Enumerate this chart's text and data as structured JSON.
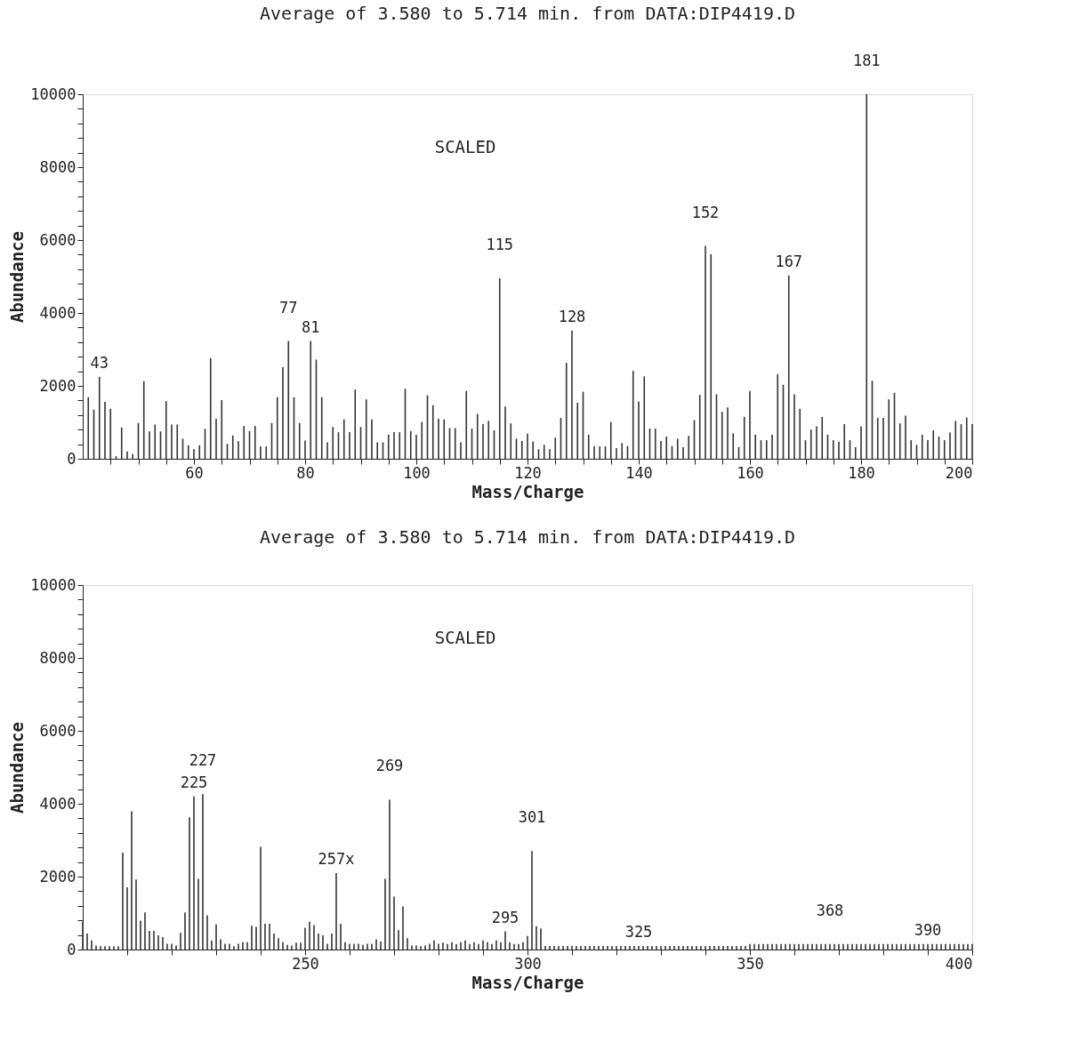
{
  "chart_data": [
    {
      "type": "bar",
      "title": "Average of 3.580 to 5.714 min. from DATA:DIP4419.D",
      "xlabel": "Mass/Charge",
      "ylabel": "Abundance",
      "color": "#333333",
      "xlim": [
        40,
        200
      ],
      "ylim": [
        0,
        10000
      ],
      "xticks": [
        {
          "value": 45,
          "label": null
        },
        {
          "value": 50,
          "label": null
        },
        {
          "value": 55,
          "label": null
        },
        60,
        {
          "value": 65,
          "label": null
        },
        {
          "value": 70,
          "label": null
        },
        {
          "value": 75,
          "label": null
        },
        80,
        {
          "value": 85,
          "label": null
        },
        {
          "value": 90,
          "label": null
        },
        {
          "value": 95,
          "label": null
        },
        100,
        {
          "value": 105,
          "label": null
        },
        {
          "value": 110,
          "label": null
        },
        {
          "value": 115,
          "label": null
        },
        120,
        {
          "value": 125,
          "label": null
        },
        {
          "value": 130,
          "label": null
        },
        {
          "value": 135,
          "label": null
        },
        140,
        {
          "value": 145,
          "label": null
        },
        {
          "value": 150,
          "label": null
        },
        {
          "value": 155,
          "label": null
        },
        160,
        {
          "value": 165,
          "label": null
        },
        {
          "value": 170,
          "label": null
        },
        {
          "value": 175,
          "label": null
        },
        180,
        {
          "value": 185,
          "label": null
        },
        {
          "value": 190,
          "label": null
        },
        {
          "value": 195,
          "label": null
        },
        200
      ],
      "yticks": [
        0,
        {
          "value": 400,
          "label": null
        },
        {
          "value": 800,
          "label": null
        },
        {
          "value": 1200,
          "label": null
        },
        {
          "value": 1600,
          "label": null
        },
        2000,
        {
          "value": 2400,
          "label": null
        },
        {
          "value": 2800,
          "label": null
        },
        {
          "value": 3200,
          "label": null
        },
        {
          "value": 3600,
          "label": null
        },
        4000,
        {
          "value": 4400,
          "label": null
        },
        {
          "value": 4800,
          "label": null
        },
        {
          "value": 5200,
          "label": null
        },
        {
          "value": 5600,
          "label": null
        },
        6000,
        {
          "value": 6400,
          "label": null
        },
        {
          "value": 6800,
          "label": null
        },
        {
          "value": 7200,
          "label": null
        },
        {
          "value": 7600,
          "label": null
        },
        8000,
        {
          "value": 8400,
          "label": null
        },
        {
          "value": 8800,
          "label": null
        },
        {
          "value": 9200,
          "label": null
        },
        {
          "value": 9600,
          "label": null
        },
        10000
      ],
      "x": [
        41,
        42,
        43,
        44,
        45,
        46,
        47,
        48,
        49,
        50,
        51,
        52,
        53,
        54,
        55,
        56,
        57,
        58,
        59,
        60,
        61,
        62,
        63,
        64,
        65,
        66,
        67,
        68,
        69,
        70,
        71,
        72,
        73,
        74,
        75,
        76,
        77,
        78,
        79,
        80,
        81,
        82,
        83,
        84,
        85,
        86,
        87,
        88,
        89,
        90,
        91,
        92,
        93,
        94,
        95,
        96,
        97,
        98,
        99,
        100,
        101,
        102,
        103,
        104,
        105,
        106,
        107,
        108,
        109,
        110,
        111,
        112,
        113,
        114,
        115,
        116,
        117,
        118,
        119,
        120,
        121,
        122,
        123,
        124,
        125,
        126,
        127,
        128,
        129,
        130,
        131,
        132,
        133,
        134,
        135,
        136,
        137,
        138,
        139,
        140,
        141,
        142,
        143,
        144,
        145,
        146,
        147,
        148,
        149,
        150,
        151,
        152,
        153,
        154,
        155,
        156,
        157,
        158,
        159,
        160,
        161,
        162,
        163,
        164,
        165,
        166,
        167,
        168,
        169,
        170,
        171,
        172,
        173,
        174,
        175,
        176,
        177,
        178,
        179,
        180,
        181,
        182,
        183,
        184,
        185,
        186,
        187,
        188,
        189,
        190,
        191,
        192,
        193,
        194,
        195,
        196,
        197,
        198,
        199,
        200
      ],
      "values": [
        1690,
        1350,
        2250,
        1560,
        1370,
        70,
        860,
        200,
        130,
        980,
        2130,
        750,
        940,
        750,
        1580,
        940,
        940,
        550,
        370,
        260,
        370,
        820,
        2760,
        1100,
        1610,
        410,
        640,
        480,
        900,
        760,
        900,
        340,
        340,
        980,
        1690,
        2510,
        3230,
        1690,
        980,
        500,
        3230,
        2720,
        1690,
        450,
        870,
        730,
        1080,
        730,
        1900,
        870,
        1630,
        1080,
        450,
        450,
        660,
        730,
        730,
        1920,
        760,
        660,
        1010,
        1740,
        1470,
        1100,
        1080,
        840,
        840,
        450,
        1860,
        830,
        1230,
        950,
        1040,
        780,
        4950,
        1430,
        970,
        550,
        490,
        690,
        470,
        260,
        380,
        260,
        580,
        1120,
        2630,
        3520,
        1540,
        1840,
        660,
        340,
        340,
        340,
        1010,
        290,
        430,
        350,
        2410,
        1570,
        2260,
        830,
        830,
        490,
        610,
        350,
        550,
        320,
        630,
        1060,
        1750,
        5840,
        5610,
        1770,
        1290,
        1410,
        700,
        320,
        1150,
        1860,
        660,
        510,
        510,
        660,
        2320,
        2030,
        5030,
        1770,
        1370,
        510,
        800,
        890,
        1150,
        660,
        510,
        470,
        950,
        510,
        320,
        890,
        10000,
        2140,
        1120,
        1120,
        1630,
        1810,
        970,
        1180,
        510,
        380,
        660,
        510,
        780,
        610,
        510,
        720,
        1040,
        950,
        1130,
        950
      ],
      "annotations": [
        "SCALED",
        {
          "text": "43",
          "x": 43,
          "y": 2250
        },
        {
          "text": "77",
          "x": 77,
          "y": 3230
        },
        {
          "text": "81",
          "x": 81,
          "y": 3230
        },
        {
          "text": "115",
          "x": 115,
          "y": 4950
        },
        {
          "text": "128",
          "x": 128,
          "y": 3520
        },
        {
          "text": "152",
          "x": 152,
          "y": 5840
        },
        {
          "text": "167",
          "x": 167,
          "y": 5030
        },
        {
          "text": "181",
          "x": 181,
          "y": 10000
        }
      ]
    },
    {
      "type": "bar",
      "title": "Average of 3.580 to 5.714 min. from DATA:DIP4419.D",
      "xlabel": "Mass/Charge",
      "ylabel": "Abundance",
      "color": "#333333",
      "xlim": [
        200,
        400
      ],
      "ylim": [
        0,
        10000
      ],
      "xticks": [
        {
          "value": 210,
          "label": null
        },
        {
          "value": 220,
          "label": null
        },
        {
          "value": 230,
          "label": null
        },
        {
          "value": 240,
          "label": null
        },
        250,
        {
          "value": 260,
          "label": null
        },
        {
          "value": 270,
          "label": null
        },
        {
          "value": 280,
          "label": null
        },
        {
          "value": 290,
          "label": null
        },
        300,
        {
          "value": 310,
          "label": null
        },
        {
          "value": 320,
          "label": null
        },
        {
          "value": 330,
          "label": null
        },
        {
          "value": 340,
          "label": null
        },
        350,
        {
          "value": 360,
          "label": null
        },
        {
          "value": 370,
          "label": null
        },
        {
          "value": 380,
          "label": null
        },
        {
          "value": 390,
          "label": null
        },
        400
      ],
      "yticks": [
        0,
        {
          "value": 400,
          "label": null
        },
        {
          "value": 800,
          "label": null
        },
        {
          "value": 1200,
          "label": null
        },
        {
          "value": 1600,
          "label": null
        },
        2000,
        {
          "value": 2400,
          "label": null
        },
        {
          "value": 2800,
          "label": null
        },
        {
          "value": 3200,
          "label": null
        },
        {
          "value": 3600,
          "label": null
        },
        4000,
        {
          "value": 4400,
          "label": null
        },
        {
          "value": 4800,
          "label": null
        },
        {
          "value": 5200,
          "label": null
        },
        {
          "value": 5600,
          "label": null
        },
        6000,
        {
          "value": 6400,
          "label": null
        },
        {
          "value": 6800,
          "label": null
        },
        {
          "value": 7200,
          "label": null
        },
        {
          "value": 7600,
          "label": null
        },
        8000,
        {
          "value": 8400,
          "label": null
        },
        {
          "value": 8800,
          "label": null
        },
        {
          "value": 9200,
          "label": null
        },
        {
          "value": 9600,
          "label": null
        },
        10000
      ],
      "x": [
        200,
        201,
        202,
        203,
        204,
        205,
        206,
        207,
        208,
        209,
        210,
        211,
        212,
        213,
        214,
        215,
        216,
        217,
        218,
        219,
        220,
        221,
        222,
        223,
        224,
        225,
        226,
        227,
        228,
        229,
        230,
        231,
        232,
        233,
        234,
        235,
        236,
        237,
        238,
        239,
        240,
        241,
        242,
        243,
        244,
        245,
        246,
        247,
        248,
        249,
        250,
        251,
        252,
        253,
        254,
        255,
        256,
        257,
        258,
        259,
        260,
        261,
        262,
        263,
        264,
        265,
        266,
        267,
        268,
        269,
        270,
        271,
        272,
        273,
        274,
        275,
        276,
        277,
        278,
        279,
        280,
        281,
        282,
        283,
        284,
        285,
        286,
        287,
        288,
        289,
        290,
        291,
        292,
        293,
        294,
        295,
        296,
        297,
        298,
        299,
        300,
        301,
        302,
        303,
        304,
        305,
        306,
        307,
        308,
        309,
        310,
        311,
        312,
        313,
        314,
        315,
        316,
        317,
        318,
        319,
        320,
        321,
        322,
        323,
        324,
        325,
        326,
        327,
        328,
        329,
        330,
        331,
        332,
        333,
        334,
        335,
        336,
        337,
        338,
        339,
        340,
        341,
        342,
        343,
        344,
        345,
        346,
        347,
        348,
        349,
        350,
        351,
        352,
        353,
        354,
        355,
        356,
        357,
        358,
        359,
        360,
        361,
        362,
        363,
        364,
        365,
        366,
        367,
        368,
        369,
        370,
        371,
        372,
        373,
        374,
        375,
        376,
        377,
        378,
        379,
        380,
        381,
        382,
        383,
        384,
        385,
        386,
        387,
        388,
        389,
        390,
        391,
        392,
        393,
        394,
        395,
        396,
        397,
        398,
        399,
        400
      ],
      "values": [
        760,
        440,
        250,
        110,
        90,
        90,
        90,
        90,
        90,
        2660,
        1710,
        3790,
        1920,
        790,
        1020,
        510,
        510,
        390,
        340,
        160,
        160,
        110,
        460,
        1020,
        3630,
        4200,
        1940,
        4260,
        940,
        250,
        690,
        280,
        160,
        160,
        90,
        160,
        200,
        200,
        650,
        620,
        2820,
        710,
        710,
        440,
        310,
        200,
        130,
        110,
        190,
        190,
        600,
        760,
        670,
        440,
        390,
        160,
        440,
        2100,
        710,
        200,
        160,
        160,
        160,
        130,
        160,
        160,
        280,
        220,
        1940,
        4110,
        1450,
        530,
        1180,
        310,
        110,
        110,
        90,
        110,
        160,
        250,
        160,
        190,
        150,
        200,
        150,
        200,
        250,
        150,
        200,
        150,
        250,
        200,
        150,
        250,
        200,
        500,
        200,
        150,
        150,
        200,
        370,
        2700,
        640,
        580,
        100,
        100,
        100,
        100,
        100,
        100,
        100,
        100,
        100,
        100,
        100,
        100,
        100,
        100,
        100,
        100,
        100,
        100,
        100,
        100,
        100,
        100,
        100,
        100,
        100,
        100,
        100,
        100,
        100,
        100,
        100,
        100,
        100,
        100,
        100,
        100,
        100,
        100,
        100,
        100,
        100,
        100,
        100,
        100,
        100,
        100,
        150,
        150,
        150,
        150,
        150,
        150,
        150,
        150,
        150,
        150,
        150,
        150,
        150,
        150,
        150,
        150,
        150,
        150,
        150,
        150,
        150,
        150,
        150,
        150,
        150,
        150,
        150,
        150,
        150,
        150,
        150,
        150,
        150,
        150,
        150,
        150,
        150,
        150,
        150,
        150,
        150,
        150,
        150,
        150,
        150,
        150,
        150,
        150,
        150,
        150,
        150
      ],
      "annotations": [
        "SCALED",
        {
          "text": "225",
          "x": 225,
          "y": 4200
        },
        {
          "text": "227",
          "x": 227,
          "y": 4260
        },
        {
          "text": "257x",
          "x": 257,
          "y": 2100
        },
        {
          "text": "269",
          "x": 269,
          "y": 4110
        },
        {
          "text": "295",
          "x": 295,
          "y": 500
        },
        {
          "text": "301",
          "x": 301,
          "y": 2700
        },
        {
          "text": "325",
          "x": 325,
          "y": 100
        },
        {
          "text": "368",
          "x": 368,
          "y": 150
        },
        {
          "text": "390",
          "x": 390,
          "y": 150
        }
      ]
    }
  ]
}
